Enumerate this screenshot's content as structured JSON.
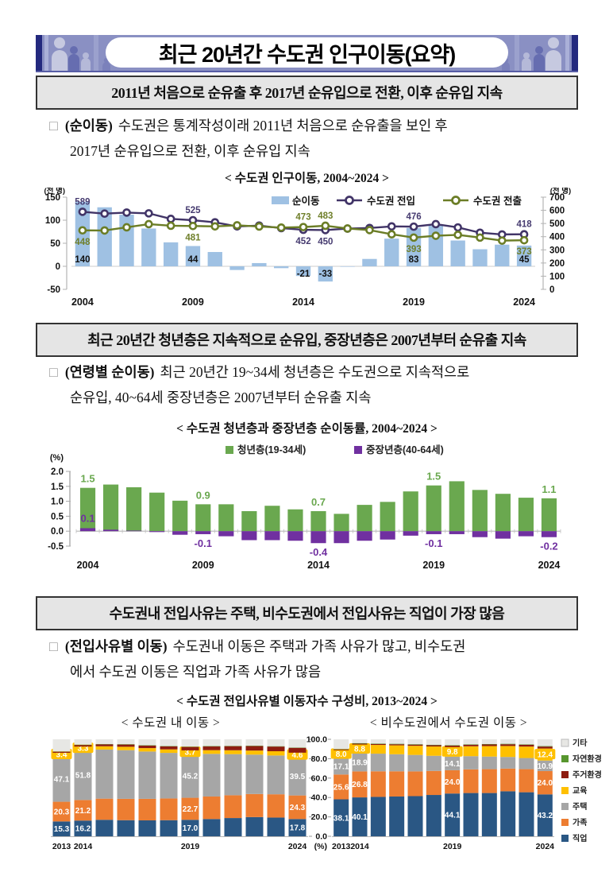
{
  "bullet": "□",
  "banner": {
    "title": "최근 20년간 수도권 인구이동(요약)"
  },
  "colors": {
    "banner_bg": "#8a90c3",
    "header_bg": "#e5e5e5",
    "header_border": "#333333",
    "net_bar_blue": "#9fc1e3",
    "inflow_purple": "#413467",
    "outflow_olive": "#6b7d26",
    "youth_green": "#6aa84f",
    "middle_purple": "#7030a0"
  },
  "sections": [
    {
      "header": "2011년 처음으로 순유출 후 2017년 순유입으로 전환, 이후 순유입 지속",
      "keyword": "(순이동)",
      "line1": "수도권은 통계작성이래 2011년 처음으로 순유출을 보인 후",
      "line2": "2017년 순유입으로 전환, 이후 순유입 지속"
    },
    {
      "header": "최근 20년간 청년층은 지속적으로 순유입, 중장년층은 2007년부터 순유출 지속",
      "keyword": "(연령별 순이동)",
      "line1": "최근 20년간 19~34세 청년층은 수도권으로 지속적으로",
      "line2": "순유입, 40~64세 중장년층은 2007년부터 순유출 지속"
    },
    {
      "header": "수도권내 전입사유는 주택, 비수도권에서 전입사유는 직업이 가장 많음",
      "keyword": "(전입사유별 이동)",
      "line1": "수도권내 이동은 주택과 가족 사유가 많고, 비수도권",
      "line2": "에서 수도권 이동은 직업과 가족 사유가 많음"
    }
  ],
  "chart_data": [
    {
      "id": "population-migration",
      "type": "bar+line",
      "title": "< 수도권 인구이동, 2004~2024 >",
      "unit_left": "(천 명)",
      "unit_right": "(천 명)",
      "ylim_left": [
        -50,
        150
      ],
      "yticks_left": [
        150,
        100,
        50,
        0,
        -50
      ],
      "ylim_right": [
        0,
        700
      ],
      "yticks_right": [
        700,
        600,
        500,
        400,
        300,
        200,
        100,
        0
      ],
      "years": [
        2004,
        2005,
        2006,
        2007,
        2008,
        2009,
        2010,
        2011,
        2012,
        2013,
        2014,
        2015,
        2016,
        2017,
        2018,
        2019,
        2020,
        2021,
        2022,
        2023,
        2024
      ],
      "x_tick_years": [
        2004,
        2009,
        2014,
        2019,
        2024
      ],
      "series": [
        {
          "name": "순이동",
          "type": "bar",
          "axis": "left",
          "color": "#9fc1e3",
          "values": [
            140,
            128,
            112,
            82,
            52,
            44,
            31,
            -8,
            7,
            -4,
            -21,
            -33,
            -1,
            16,
            60,
            83,
            88,
            56,
            37,
            47,
            45
          ]
        },
        {
          "name": "수도권 전입",
          "type": "line",
          "axis": "right",
          "color": "#413467",
          "values": [
            589,
            575,
            583,
            577,
            535,
            525,
            509,
            478,
            484,
            465,
            452,
            450,
            461,
            466,
            478,
            476,
            495,
            470,
            430,
            417,
            418
          ]
        },
        {
          "name": "수도권 전출",
          "type": "line",
          "axis": "right",
          "color": "#6b7d26",
          "values": [
            448,
            447,
            471,
            495,
            483,
            481,
            478,
            486,
            477,
            469,
            473,
            483,
            462,
            450,
            418,
            393,
            407,
            414,
            393,
            370,
            373
          ]
        }
      ],
      "annotations": [
        {
          "year": 2004,
          "series": "순이동",
          "text": "140"
        },
        {
          "year": 2009,
          "series": "순이동",
          "text": "44"
        },
        {
          "year": 2014,
          "series": "순이동",
          "text": "-21"
        },
        {
          "year": 2015,
          "series": "순이동",
          "text": "-33"
        },
        {
          "year": 2019,
          "series": "순이동",
          "text": "83"
        },
        {
          "year": 2024,
          "series": "순이동",
          "text": "45"
        },
        {
          "year": 2004,
          "series": "수도권 전입",
          "text": "589",
          "pos": "above"
        },
        {
          "year": 2009,
          "series": "수도권 전입",
          "text": "525",
          "pos": "above"
        },
        {
          "year": 2014,
          "series": "수도권 전입",
          "text": "452",
          "pos": "below"
        },
        {
          "year": 2015,
          "series": "수도권 전입",
          "text": "450",
          "pos": "below"
        },
        {
          "year": 2019,
          "series": "수도권 전입",
          "text": "476",
          "pos": "above"
        },
        {
          "year": 2024,
          "series": "수도권 전입",
          "text": "418",
          "pos": "above"
        },
        {
          "year": 2004,
          "series": "수도권 전출",
          "text": "448",
          "pos": "below"
        },
        {
          "year": 2009,
          "series": "수도권 전출",
          "text": "481",
          "pos": "below"
        },
        {
          "year": 2014,
          "series": "수도권 전출",
          "text": "473",
          "pos": "above"
        },
        {
          "year": 2015,
          "series": "수도권 전출",
          "text": "483",
          "pos": "above"
        },
        {
          "year": 2019,
          "series": "수도권 전출",
          "text": "393",
          "pos": "below"
        },
        {
          "year": 2024,
          "series": "수도권 전출",
          "text": "373",
          "pos": "below"
        }
      ]
    },
    {
      "id": "net-migration-rate-by-age",
      "type": "bar",
      "title": "< 수도권 청년층과 중장년층 순이동률, 2004~2024 >",
      "unit": "(%)",
      "ylim": [
        -0.5,
        2.0
      ],
      "yticks": [
        "2.0",
        "1.5",
        "1.0",
        "0.5",
        "0.0",
        "-0.5"
      ],
      "years": [
        2004,
        2005,
        2006,
        2007,
        2008,
        2009,
        2010,
        2011,
        2012,
        2013,
        2014,
        2015,
        2016,
        2017,
        2018,
        2019,
        2020,
        2021,
        2022,
        2023,
        2024
      ],
      "x_tick_years": [
        2004,
        2009,
        2014,
        2019,
        2024
      ],
      "series": [
        {
          "name": "청년층(19-34세)",
          "color": "#6aa84f",
          "values": [
            1.45,
            1.56,
            1.47,
            1.29,
            1.02,
            0.9,
            0.9,
            0.67,
            0.85,
            0.73,
            0.67,
            0.58,
            0.88,
            0.98,
            1.33,
            1.53,
            1.67,
            1.38,
            1.25,
            1.12,
            1.1
          ]
        },
        {
          "name": "중장년층(40-64세)",
          "color": "#7030a0",
          "values": [
            0.1,
            0.05,
            0.02,
            -0.03,
            -0.12,
            -0.1,
            -0.17,
            -0.3,
            -0.3,
            -0.32,
            -0.4,
            -0.4,
            -0.32,
            -0.28,
            -0.15,
            -0.1,
            -0.1,
            -0.2,
            -0.25,
            -0.17,
            -0.2
          ]
        }
      ],
      "annotations": [
        {
          "year": 2004,
          "series": 0,
          "text": "1.5"
        },
        {
          "year": 2004,
          "series": 1,
          "text": "0.1"
        },
        {
          "year": 2009,
          "series": 0,
          "text": "0.9"
        },
        {
          "year": 2009,
          "series": 1,
          "text": "-0.1"
        },
        {
          "year": 2014,
          "series": 0,
          "text": "0.7"
        },
        {
          "year": 2014,
          "series": 1,
          "text": "-0.4"
        },
        {
          "year": 2019,
          "series": 0,
          "text": "1.5"
        },
        {
          "year": 2019,
          "series": 1,
          "text": "-0.1"
        },
        {
          "year": 2024,
          "series": 0,
          "text": "1.1"
        },
        {
          "year": 2024,
          "series": 1,
          "text": "-0.2"
        }
      ]
    },
    {
      "id": "move-reason-composition",
      "type": "stacked-bar",
      "title": "< 수도권 전입사유별 이동자수 구성비, 2013~2024 >",
      "unit": "(%)",
      "years": [
        2013,
        2014,
        2015,
        2016,
        2017,
        2018,
        2019,
        2020,
        2021,
        2022,
        2023,
        2024
      ],
      "yticks": [
        "100.0",
        "80.0",
        "60.0",
        "40.0",
        "20.0",
        "0.0"
      ],
      "x_tick_indices": [
        0,
        1,
        6,
        11
      ],
      "labeled_year_indices": [
        0,
        1,
        6,
        11
      ],
      "label_categories": [
        "직업",
        "가족",
        "주택",
        "교육"
      ],
      "categories_bottom_to_top": [
        "직업",
        "가족",
        "주택",
        "교육",
        "주거환경",
        "자연환경",
        "기타"
      ],
      "category_colors": {
        "직업": "#2a5784",
        "가족": "#ed7d31",
        "주택": "#a6a6a6",
        "교육": "#ffc000",
        "주거환경": "#8e1c10",
        "자연환경": "#57962e",
        "기타": "#e7e7e4"
      },
      "legend_top_to_bottom": [
        "기타",
        "자연환경",
        "주거환경",
        "교육",
        "주택",
        "가족",
        "직업"
      ],
      "subcharts": [
        {
          "title": "< 수도권 내 이동 >",
          "series": {
            "직업": [
              15.3,
              16.2,
              17.0,
              16.6,
              16.4,
              16.6,
              17.0,
              17.8,
              18.8,
              19.8,
              19.3,
              17.8
            ],
            "가족": [
              20.3,
              21.2,
              21.8,
              22.0,
              22.2,
              22.4,
              22.7,
              23.2,
              23.5,
              23.8,
              24.0,
              24.3
            ],
            "주택": [
              47.1,
              51.8,
              50.6,
              50.2,
              48.8,
              47.0,
              45.2,
              44.0,
              42.4,
              40.6,
              40.0,
              39.5
            ],
            "교육": [
              3.4,
              3.3,
              3.4,
              3.5,
              3.5,
              3.6,
              3.7,
              3.8,
              4.0,
              4.2,
              4.4,
              4.6
            ],
            "주거환경": [
              1.1,
              1.6,
              2.0,
              2.3,
              2.6,
              3.1,
              3.5,
              3.8,
              4.2,
              4.6,
              4.8,
              5.0
            ],
            "자연환경": [
              0.3,
              0.4,
              0.4,
              0.4,
              0.4,
              0.4,
              0.4,
              0.4,
              0.4,
              0.4,
              0.4,
              0.4
            ],
            "기타": [
              12.5,
              5.5,
              4.8,
              5.0,
              6.1,
              6.9,
              7.5,
              7.0,
              6.7,
              6.6,
              7.1,
              8.4
            ]
          }
        },
        {
          "title": "< 비수도권에서 수도권 이동 >",
          "series": {
            "직업": [
              38.1,
              40.1,
              40.6,
              41.0,
              41.4,
              42.6,
              44.1,
              44.6,
              44.6,
              46.4,
              45.4,
              43.2
            ],
            "가족": [
              25.6,
              26.8,
              26.4,
              26.0,
              25.5,
              24.8,
              24.0,
              24.4,
              24.6,
              23.4,
              23.8,
              24.0
            ],
            "주택": [
              17.1,
              18.9,
              18.2,
              17.6,
              17.0,
              15.6,
              14.1,
              13.6,
              13.0,
              12.0,
              11.5,
              10.9
            ],
            "교육": [
              8.0,
              8.8,
              9.0,
              9.2,
              9.4,
              9.6,
              9.8,
              10.2,
              10.8,
              11.3,
              11.8,
              12.4
            ],
            "주거환경": [
              0.8,
              0.9,
              1.0,
              1.1,
              1.2,
              1.3,
              1.5,
              1.6,
              1.7,
              1.8,
              1.9,
              2.0
            ],
            "자연환경": [
              0.4,
              0.6,
              0.5,
              0.5,
              0.5,
              0.5,
              0.5,
              0.5,
              0.5,
              0.5,
              0.5,
              0.5
            ],
            "기타": [
              10.0,
              3.9,
              4.3,
              4.6,
              5.0,
              5.6,
              6.0,
              5.1,
              4.8,
              4.6,
              5.1,
              7.0
            ]
          }
        }
      ]
    }
  ]
}
